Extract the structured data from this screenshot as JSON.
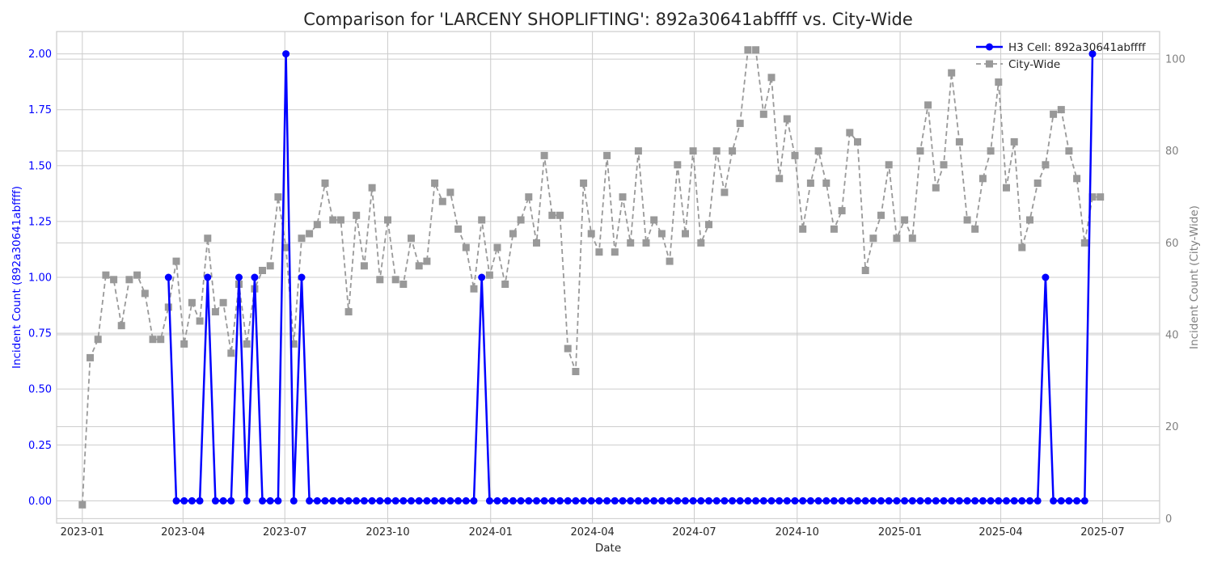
{
  "chart_data": {
    "type": "line",
    "title": "Comparison for 'LARCENY SHOPLIFTING': 892a30641abffff vs. City-Wide",
    "xlabel": "Date",
    "ylabel_left": "Incident Count (892a30641abffff)",
    "ylabel_right": "Incident Count (City-Wide)",
    "x_ticks": [
      "2023-01",
      "2023-04",
      "2023-07",
      "2023-10",
      "2024-01",
      "2024-04",
      "2024-07",
      "2024-10",
      "2025-01",
      "2025-04",
      "2025-07"
    ],
    "y_left_ticks": [
      "0.00",
      "0.25",
      "0.50",
      "0.75",
      "1.00",
      "1.25",
      "1.50",
      "1.75",
      "2.00"
    ],
    "y_right_ticks": [
      "0",
      "20",
      "40",
      "60",
      "80",
      "100"
    ],
    "ylim_left": [
      -0.1,
      2.1
    ],
    "ylim_right": [
      -1,
      106
    ],
    "grid": true,
    "legend_position": "top-right",
    "colors": {
      "h3": "#0000ff",
      "city": "#999999",
      "left_axis": "#0000ff",
      "right_axis": "#808080"
    },
    "series": [
      {
        "name": "H3 Cell: 892a30641abffff",
        "axis": "left",
        "style": "solid-circle",
        "x": [
          "2023-03-19",
          "2023-03-26",
          "2023-04-02",
          "2023-04-09",
          "2023-04-16",
          "2023-04-23",
          "2023-04-30",
          "2023-05-07",
          "2023-05-14",
          "2023-05-21",
          "2023-05-28",
          "2023-06-04",
          "2023-06-11",
          "2023-06-18",
          "2023-06-25",
          "2023-07-02",
          "2023-07-09",
          "2023-07-16",
          "2023-07-23",
          "2023-07-30",
          "2023-08-06",
          "2023-08-13",
          "2023-08-20",
          "2023-08-27",
          "2023-09-03",
          "2023-09-10",
          "2023-09-17",
          "2023-09-24",
          "2023-10-01",
          "2023-10-08",
          "2023-10-15",
          "2023-10-22",
          "2023-10-29",
          "2023-11-05",
          "2023-11-12",
          "2023-11-19",
          "2023-11-26",
          "2023-12-03",
          "2023-12-10",
          "2023-12-17",
          "2023-12-24",
          "2023-12-31",
          "2024-01-07",
          "2024-01-14",
          "2024-01-21",
          "2024-01-28",
          "2024-02-04",
          "2024-02-11",
          "2024-02-18",
          "2024-02-25",
          "2024-03-03",
          "2024-03-10",
          "2024-03-17",
          "2024-03-24",
          "2024-03-31",
          "2024-04-07",
          "2024-04-14",
          "2024-04-21",
          "2024-04-28",
          "2024-05-05",
          "2024-05-12",
          "2024-05-19",
          "2024-05-26",
          "2024-06-02",
          "2024-06-09",
          "2024-06-16",
          "2024-06-23",
          "2024-06-30",
          "2024-07-07",
          "2024-07-14",
          "2024-07-21",
          "2024-07-28",
          "2024-08-04",
          "2024-08-11",
          "2024-08-18",
          "2024-08-25",
          "2024-09-01",
          "2024-09-08",
          "2024-09-15",
          "2024-09-22",
          "2024-09-29",
          "2024-10-06",
          "2024-10-13",
          "2024-10-20",
          "2024-10-27",
          "2024-11-03",
          "2024-11-10",
          "2024-11-17",
          "2024-11-24",
          "2024-12-01",
          "2024-12-08",
          "2024-12-15",
          "2024-12-22",
          "2024-12-29",
          "2025-01-05",
          "2025-01-12",
          "2025-01-19",
          "2025-01-26",
          "2025-02-02",
          "2025-02-09",
          "2025-02-16",
          "2025-02-23",
          "2025-03-02",
          "2025-03-09",
          "2025-03-16",
          "2025-03-23",
          "2025-03-30",
          "2025-04-06",
          "2025-04-13",
          "2025-04-20",
          "2025-04-27",
          "2025-05-04",
          "2025-05-11",
          "2025-05-18",
          "2025-05-25",
          "2025-06-01",
          "2025-06-08",
          "2025-06-15",
          "2025-06-22"
        ],
        "values": [
          1,
          0,
          0,
          0,
          0,
          1,
          0,
          0,
          0,
          1,
          0,
          1,
          0,
          0,
          0,
          2,
          0,
          1,
          0,
          0,
          0,
          0,
          0,
          0,
          0,
          0,
          0,
          0,
          0,
          0,
          0,
          0,
          0,
          0,
          0,
          0,
          0,
          0,
          0,
          0,
          1,
          0,
          0,
          0,
          0,
          0,
          0,
          0,
          0,
          0,
          0,
          0,
          0,
          0,
          0,
          0,
          0,
          0,
          0,
          0,
          0,
          0,
          0,
          0,
          0,
          0,
          0,
          0,
          0,
          0,
          0,
          0,
          0,
          0,
          0,
          0,
          0,
          0,
          0,
          0,
          0,
          0,
          0,
          0,
          0,
          0,
          0,
          0,
          0,
          0,
          0,
          0,
          0,
          0,
          0,
          0,
          0,
          0,
          0,
          0,
          0,
          0,
          0,
          0,
          0,
          0,
          0,
          0,
          0,
          0,
          0,
          0,
          1,
          0,
          0,
          0,
          0,
          0,
          2
        ]
      },
      {
        "name": "City-Wide",
        "axis": "right",
        "style": "dashed-square",
        "x": [
          "2023-01-01",
          "2023-01-08",
          "2023-01-15",
          "2023-01-22",
          "2023-01-29",
          "2023-02-05",
          "2023-02-12",
          "2023-02-19",
          "2023-02-26",
          "2023-03-05",
          "2023-03-12",
          "2023-03-19",
          "2023-03-26",
          "2023-04-02",
          "2023-04-09",
          "2023-04-16",
          "2023-04-23",
          "2023-04-30",
          "2023-05-07",
          "2023-05-14",
          "2023-05-21",
          "2023-05-28",
          "2023-06-04",
          "2023-06-11",
          "2023-06-18",
          "2023-06-25",
          "2023-07-02",
          "2023-07-09",
          "2023-07-16",
          "2023-07-23",
          "2023-07-30",
          "2023-08-06",
          "2023-08-13",
          "2023-08-20",
          "2023-08-27",
          "2023-09-03",
          "2023-09-10",
          "2023-09-17",
          "2023-09-24",
          "2023-10-01",
          "2023-10-08",
          "2023-10-15",
          "2023-10-22",
          "2023-10-29",
          "2023-11-05",
          "2023-11-12",
          "2023-11-19",
          "2023-11-26",
          "2023-12-03",
          "2023-12-10",
          "2023-12-17",
          "2023-12-24",
          "2023-12-31",
          "2024-01-07",
          "2024-01-14",
          "2024-01-21",
          "2024-01-28",
          "2024-02-04",
          "2024-02-11",
          "2024-02-18",
          "2024-02-25",
          "2024-03-03",
          "2024-03-10",
          "2024-03-17",
          "2024-03-24",
          "2024-03-31",
          "2024-04-07",
          "2024-04-14",
          "2024-04-21",
          "2024-04-28",
          "2024-05-05",
          "2024-05-12",
          "2024-05-19",
          "2024-05-26",
          "2024-06-02",
          "2024-06-09",
          "2024-06-16",
          "2024-06-23",
          "2024-06-30",
          "2024-07-07",
          "2024-07-14",
          "2024-07-21",
          "2024-07-28",
          "2024-08-04",
          "2024-08-11",
          "2024-08-18",
          "2024-08-25",
          "2024-09-01",
          "2024-09-08",
          "2024-09-15",
          "2024-09-22",
          "2024-09-29",
          "2024-10-06",
          "2024-10-13",
          "2024-10-20",
          "2024-10-27",
          "2024-11-03",
          "2024-11-10",
          "2024-11-17",
          "2024-11-24",
          "2024-12-01",
          "2024-12-08",
          "2024-12-15",
          "2024-12-22",
          "2024-12-29",
          "2025-01-05",
          "2025-01-12",
          "2025-01-19",
          "2025-01-26",
          "2025-02-02",
          "2025-02-09",
          "2025-02-16",
          "2025-02-23",
          "2025-03-02",
          "2025-03-09",
          "2025-03-16",
          "2025-03-23",
          "2025-03-30",
          "2025-04-06",
          "2025-04-13",
          "2025-04-20",
          "2025-04-27",
          "2025-05-04",
          "2025-05-11",
          "2025-05-18",
          "2025-05-25",
          "2025-06-01",
          "2025-06-08",
          "2025-06-15",
          "2025-06-22",
          "2025-06-29"
        ],
        "values": [
          3,
          35,
          39,
          53,
          52,
          42,
          52,
          53,
          49,
          39,
          39,
          46,
          56,
          38,
          47,
          43,
          61,
          45,
          47,
          36,
          51,
          38,
          50,
          54,
          55,
          70,
          59,
          38,
          61,
          62,
          64,
          73,
          65,
          65,
          45,
          66,
          55,
          72,
          52,
          65,
          52,
          51,
          61,
          55,
          56,
          73,
          69,
          71,
          63,
          59,
          50,
          65,
          53,
          59,
          51,
          62,
          65,
          70,
          60,
          79,
          66,
          66,
          37,
          32,
          73,
          62,
          58,
          79,
          58,
          70,
          60,
          80,
          60,
          65,
          62,
          56,
          77,
          62,
          80,
          60,
          64,
          80,
          71,
          80,
          86,
          102,
          102,
          88,
          96,
          74,
          87,
          79,
          63,
          73,
          80,
          73,
          63,
          67,
          84,
          82,
          54,
          61,
          66,
          77,
          61,
          65,
          61,
          80,
          90,
          72,
          77,
          97,
          82,
          65,
          63,
          74,
          80,
          95,
          72,
          82,
          59,
          65,
          73,
          77,
          88,
          89,
          80,
          74,
          60,
          70,
          70
        ]
      }
    ]
  }
}
